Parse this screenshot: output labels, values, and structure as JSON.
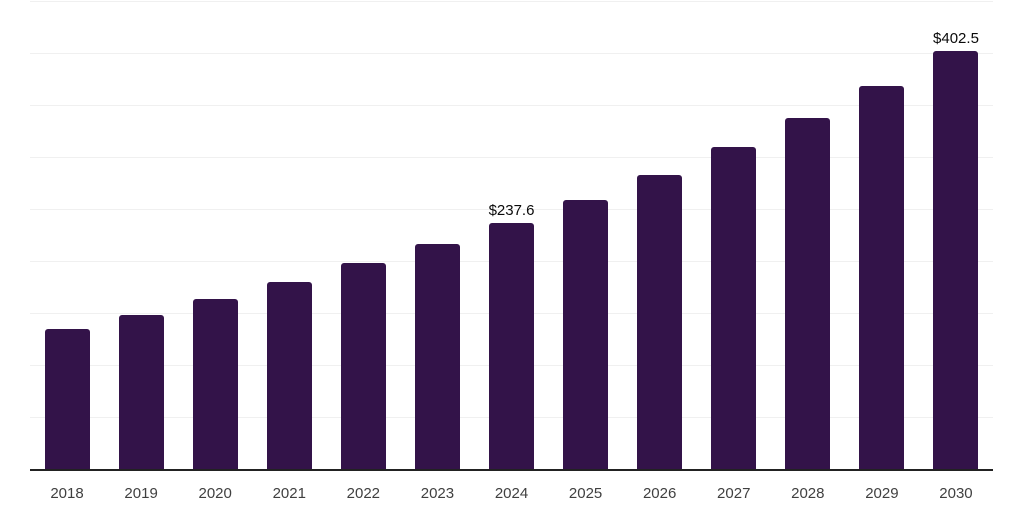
{
  "page": {
    "background_color": "#FFFFFF"
  },
  "chart_data": {
    "type": "bar",
    "title": "",
    "xlabel": "",
    "ylabel": "",
    "categories": [
      "2018",
      "2019",
      "2020",
      "2021",
      "2022",
      "2023",
      "2024",
      "2025",
      "2026",
      "2027",
      "2028",
      "2029",
      "2030"
    ],
    "values": [
      135.5,
      148.9,
      164.9,
      180.5,
      198.8,
      217.0,
      237.6,
      259.8,
      283.5,
      310.2,
      338.3,
      369.5,
      402.5
    ],
    "data_labels": {
      "2024": "$237.6",
      "2030": "$402.5"
    },
    "ylim": [
      0,
      450
    ],
    "gridline_interval": 50,
    "grid": "horizontal",
    "y_axis_labels_visible": false,
    "legend_position": "none",
    "colors": {
      "bar": "#331349",
      "gridline": "#F0F0F0",
      "axis_line": "#222222",
      "category_label": "#404040",
      "data_label": "#0A0A0A"
    }
  }
}
